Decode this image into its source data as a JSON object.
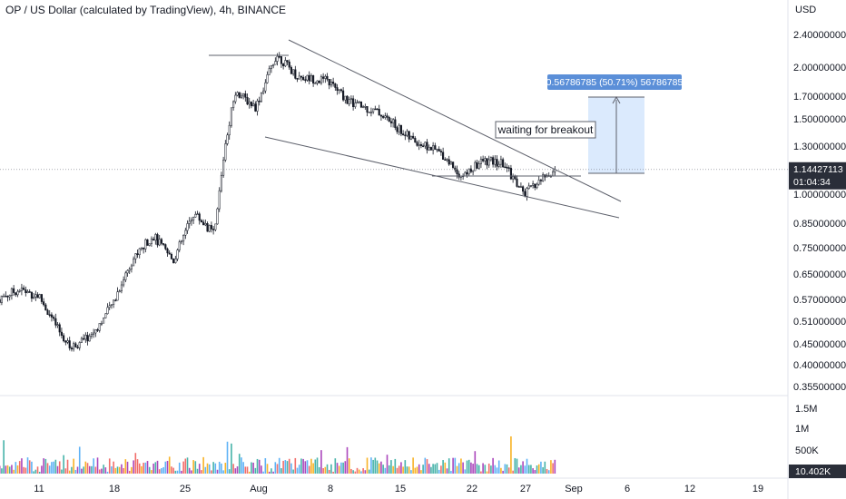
{
  "header": {
    "title": "OP / US Dollar (calculated by TradingView), 4h, BINANCE"
  },
  "colors": {
    "up": "#ffffff",
    "down": "#131722",
    "line": "#5d606b",
    "price_tag": "#2a2e39",
    "measure_fill": "#dbeafd",
    "measure_label": "#5b8fd8",
    "vol": [
      "#26a69a",
      "#ef5350",
      "#f7a600",
      "#9c27b0",
      "#42a5f5"
    ]
  },
  "chart_data": {
    "type": "candlestick",
    "y_axis_unit": "USD",
    "scale": "log",
    "y_ticks": [
      "2.40000000",
      "2.00000000",
      "1.70000000",
      "1.50000000",
      "1.30000000",
      "1.00000000",
      "0.85000000",
      "0.75000000",
      "0.65000000",
      "0.57000000",
      "0.51000000",
      "0.45000000",
      "0.40000000",
      "0.35500000"
    ],
    "x_ticks": [
      "11",
      "18",
      "25",
      "Aug",
      "8",
      "15",
      "22",
      "27",
      "Sep",
      "6",
      "12",
      "19"
    ],
    "volume_ticks": [
      "1.5M",
      "1M",
      "500K"
    ],
    "last_price": "1.14427113",
    "countdown": "01:04:34",
    "volume_last": "10.402K",
    "price_path": [
      {
        "date": "2022-07-07",
        "price": 0.57
      },
      {
        "date": "2022-07-09",
        "price": 0.6
      },
      {
        "date": "2022-07-11",
        "price": 0.58
      },
      {
        "date": "2022-07-13",
        "price": 0.48
      },
      {
        "date": "2022-07-14",
        "price": 0.44
      },
      {
        "date": "2022-07-16",
        "price": 0.47
      },
      {
        "date": "2022-07-18",
        "price": 0.55
      },
      {
        "date": "2022-07-20",
        "price": 0.7
      },
      {
        "date": "2022-07-22",
        "price": 0.8
      },
      {
        "date": "2022-07-24",
        "price": 0.7
      },
      {
        "date": "2022-07-26",
        "price": 0.9
      },
      {
        "date": "2022-07-28",
        "price": 0.8
      },
      {
        "date": "2022-07-29",
        "price": 1.3
      },
      {
        "date": "2022-07-30",
        "price": 1.75
      },
      {
        "date": "2022-08-01",
        "price": 1.6
      },
      {
        "date": "2022-08-03",
        "price": 2.15
      },
      {
        "date": "2022-08-05",
        "price": 1.9
      },
      {
        "date": "2022-08-08",
        "price": 1.85
      },
      {
        "date": "2022-08-10",
        "price": 1.65
      },
      {
        "date": "2022-08-13",
        "price": 1.55
      },
      {
        "date": "2022-08-16",
        "price": 1.35
      },
      {
        "date": "2022-08-19",
        "price": 1.25
      },
      {
        "date": "2022-08-21",
        "price": 1.1
      },
      {
        "date": "2022-08-23",
        "price": 1.2
      },
      {
        "date": "2022-08-25",
        "price": 1.18
      },
      {
        "date": "2022-08-27",
        "price": 1.0
      },
      {
        "date": "2022-08-29",
        "price": 1.1
      },
      {
        "date": "2022-08-30",
        "price": 1.14
      }
    ],
    "annotations": {
      "breakout_text": "waiting for breakout",
      "measure_label": "0.56786785 (50.71%) 56786785"
    }
  }
}
